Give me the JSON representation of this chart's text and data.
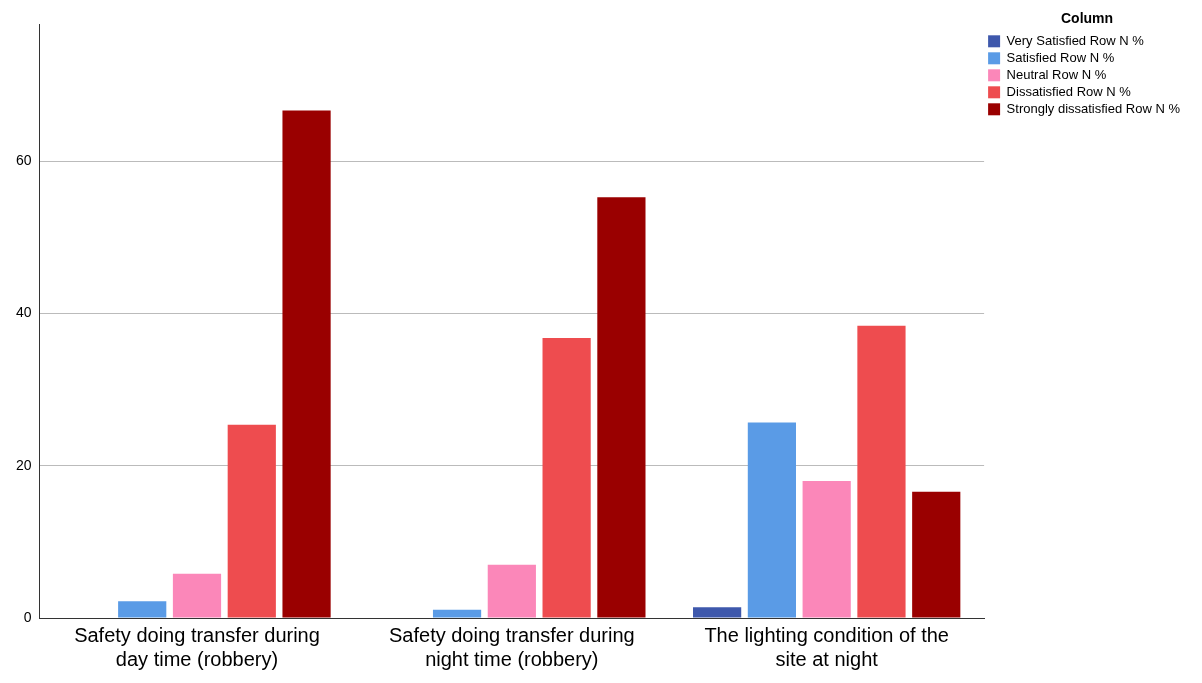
{
  "chart_data": {
    "type": "bar",
    "categories": [
      "Safety doing transfer during day time (robbery)",
      "Safety doing transfer during night time (robbery)",
      "The lighting condition of the site at night"
    ],
    "series": [
      {
        "name": "Very Satisfied Row N %",
        "color": "#3e58ac",
        "values": [
          0,
          0,
          1.4
        ]
      },
      {
        "name": "Satisfied Row N %",
        "color": "#5a9be6",
        "values": [
          2.2,
          1.1,
          25.7
        ]
      },
      {
        "name": "Neutral Row N %",
        "color": "#fb87b9",
        "values": [
          5.8,
          7.0,
          18.0
        ]
      },
      {
        "name": "Dissatisfied Row N %",
        "color": "#ee4c4f",
        "values": [
          25.4,
          36.8,
          38.4
        ]
      },
      {
        "name": "Strongly dissatisfied Row N %",
        "color": "#9a0000",
        "values": [
          66.7,
          55.3,
          16.6
        ]
      }
    ],
    "legend_title": "Column",
    "legend": "top right",
    "ylim": [
      0,
      78
    ],
    "yticks": [
      0,
      20,
      40,
      60
    ],
    "grid": "y"
  }
}
